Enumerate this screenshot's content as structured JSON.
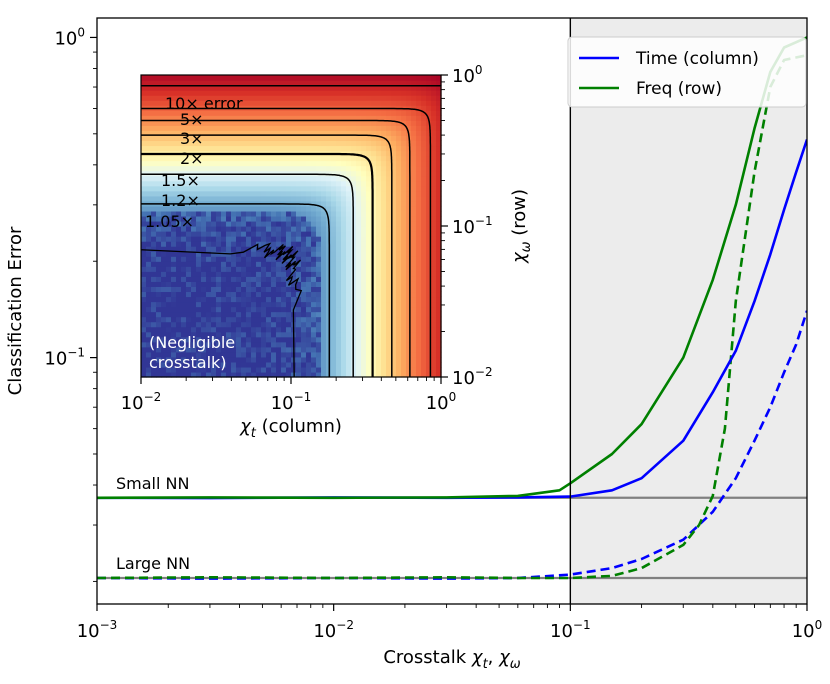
{
  "chart_data": [
    {
      "id": "main",
      "type": "line",
      "xlabel": "Crosstalk χt, χω",
      "ylabel": "Classification Error",
      "xscale": "log",
      "yscale": "log",
      "xlim": [
        0.001,
        1.0
      ],
      "ylim": [
        0.017,
        1.15
      ],
      "x_ticks": [
        {
          "value": 0.001,
          "base": "10",
          "exp": "−3"
        },
        {
          "value": 0.01,
          "base": "10",
          "exp": "−2"
        },
        {
          "value": 0.1,
          "base": "10",
          "exp": "−1"
        },
        {
          "value": 1.0,
          "base": "10",
          "exp": "0"
        }
      ],
      "y_ticks": [
        {
          "value": 0.1,
          "base": "10",
          "exp": "−1"
        },
        {
          "value": 1.0,
          "base": "10",
          "exp": "0"
        }
      ],
      "shaded_region": {
        "x_from": 0.1,
        "x_to": 1.0,
        "color": "#ececec"
      },
      "vline": {
        "x": 0.1
      },
      "grid": false,
      "legend": {
        "placement": "top-right",
        "entries": [
          {
            "label": "Time (column)",
            "color": "#0000ff"
          },
          {
            "label": "Freq (row)",
            "color": "#008000"
          }
        ]
      },
      "baselines": [
        {
          "label": "Small NN",
          "y": 0.0365,
          "color": "#808080"
        },
        {
          "label": "Large NN",
          "y": 0.0205,
          "color": "#808080"
        }
      ],
      "series": [
        {
          "network": "Small NN",
          "name": "Time (column)",
          "color": "#0000ff",
          "dash": "solid",
          "points": [
            [
              0.001,
              0.0365
            ],
            [
              0.003,
              0.0364
            ],
            [
              0.01,
              0.0366
            ],
            [
              0.03,
              0.0365
            ],
            [
              0.06,
              0.0366
            ],
            [
              0.1,
              0.0368
            ],
            [
              0.15,
              0.0385
            ],
            [
              0.2,
              0.042
            ],
            [
              0.3,
              0.055
            ],
            [
              0.4,
              0.078
            ],
            [
              0.5,
              0.105
            ],
            [
              0.6,
              0.15
            ],
            [
              0.7,
              0.21
            ],
            [
              0.8,
              0.29
            ],
            [
              0.9,
              0.38
            ],
            [
              1.0,
              0.48
            ]
          ]
        },
        {
          "network": "Small NN",
          "name": "Freq (row)",
          "color": "#008000",
          "dash": "solid",
          "points": [
            [
              0.001,
              0.0365
            ],
            [
              0.003,
              0.0366
            ],
            [
              0.01,
              0.0365
            ],
            [
              0.03,
              0.0366
            ],
            [
              0.06,
              0.037
            ],
            [
              0.09,
              0.0385
            ],
            [
              0.1,
              0.0405
            ],
            [
              0.15,
              0.05
            ],
            [
              0.2,
              0.062
            ],
            [
              0.3,
              0.1
            ],
            [
              0.4,
              0.175
            ],
            [
              0.5,
              0.3
            ],
            [
              0.6,
              0.52
            ],
            [
              0.7,
              0.78
            ],
            [
              0.8,
              0.93
            ],
            [
              1.0,
              1.0
            ]
          ]
        },
        {
          "network": "Large NN",
          "name": "Time (column)",
          "color": "#0000ff",
          "dash": "dashed",
          "points": [
            [
              0.001,
              0.0205
            ],
            [
              0.003,
              0.0204
            ],
            [
              0.01,
              0.0205
            ],
            [
              0.03,
              0.0204
            ],
            [
              0.06,
              0.0205
            ],
            [
              0.1,
              0.021
            ],
            [
              0.15,
              0.022
            ],
            [
              0.2,
              0.0235
            ],
            [
              0.3,
              0.027
            ],
            [
              0.4,
              0.033
            ],
            [
              0.5,
              0.042
            ],
            [
              0.6,
              0.055
            ],
            [
              0.7,
              0.07
            ],
            [
              0.8,
              0.09
            ],
            [
              0.9,
              0.11
            ],
            [
              1.0,
              0.14
            ]
          ]
        },
        {
          "network": "Large NN",
          "name": "Freq (row)",
          "color": "#008000",
          "dash": "dashed",
          "points": [
            [
              0.001,
              0.0205
            ],
            [
              0.003,
              0.0206
            ],
            [
              0.01,
              0.0205
            ],
            [
              0.03,
              0.0206
            ],
            [
              0.06,
              0.0205
            ],
            [
              0.1,
              0.0205
            ],
            [
              0.15,
              0.0208
            ],
            [
              0.2,
              0.022
            ],
            [
              0.3,
              0.026
            ],
            [
              0.35,
              0.03
            ],
            [
              0.4,
              0.037
            ],
            [
              0.45,
              0.06
            ],
            [
              0.5,
              0.15
            ],
            [
              0.6,
              0.38
            ],
            [
              0.7,
              0.7
            ],
            [
              0.8,
              0.85
            ],
            [
              1.0,
              0.88
            ]
          ]
        }
      ]
    },
    {
      "id": "inset",
      "type": "heatmap",
      "xlabel": "χt (column)",
      "ylabel": "χω (row)",
      "xscale": "log",
      "yscale": "log",
      "xlim": [
        0.01,
        1.0
      ],
      "ylim": [
        0.01,
        1.0
      ],
      "colormap": "RdYlBu_r",
      "colormap_colors": [
        "#313695",
        "#4575b4",
        "#74add1",
        "#abd9e9",
        "#e0f3f8",
        "#ffffbf",
        "#fee090",
        "#fdae61",
        "#f46d43",
        "#d73027",
        "#a50026"
      ],
      "x_ticks": [
        {
          "value": 0.01,
          "base": "10",
          "exp": "−2"
        },
        {
          "value": 0.1,
          "base": "10",
          "exp": "−1"
        },
        {
          "value": 1.0,
          "base": "10",
          "exp": "0"
        }
      ],
      "y_ticks": [
        {
          "value": 0.01,
          "base": "10",
          "exp": "−2"
        },
        {
          "value": 0.1,
          "base": "10",
          "exp": "−1"
        },
        {
          "value": 1.0,
          "base": "10",
          "exp": "0"
        }
      ],
      "contours": [
        {
          "label": "10× error",
          "level": 10,
          "x_threshold": 1.6,
          "y_threshold": 0.85
        },
        {
          "label": "5×",
          "level": 5,
          "x_threshold": 0.85,
          "y_threshold": 0.6
        },
        {
          "label": "3×",
          "level": 3,
          "x_threshold": 0.62,
          "y_threshold": 0.5
        },
        {
          "label": "2×",
          "level": 2,
          "x_threshold": 0.47,
          "y_threshold": 0.4
        },
        {
          "label": "1.5×",
          "level": 1.5,
          "x_threshold": 0.35,
          "y_threshold": 0.3
        },
        {
          "label": "1.2×",
          "level": 1.2,
          "x_threshold": 0.26,
          "y_threshold": 0.22
        },
        {
          "label": "1.05×",
          "level": 1.05,
          "x_threshold": 0.18,
          "y_threshold": 0.14
        }
      ],
      "annotation": [
        "(Negligible",
        "crosstalk)"
      ]
    }
  ]
}
